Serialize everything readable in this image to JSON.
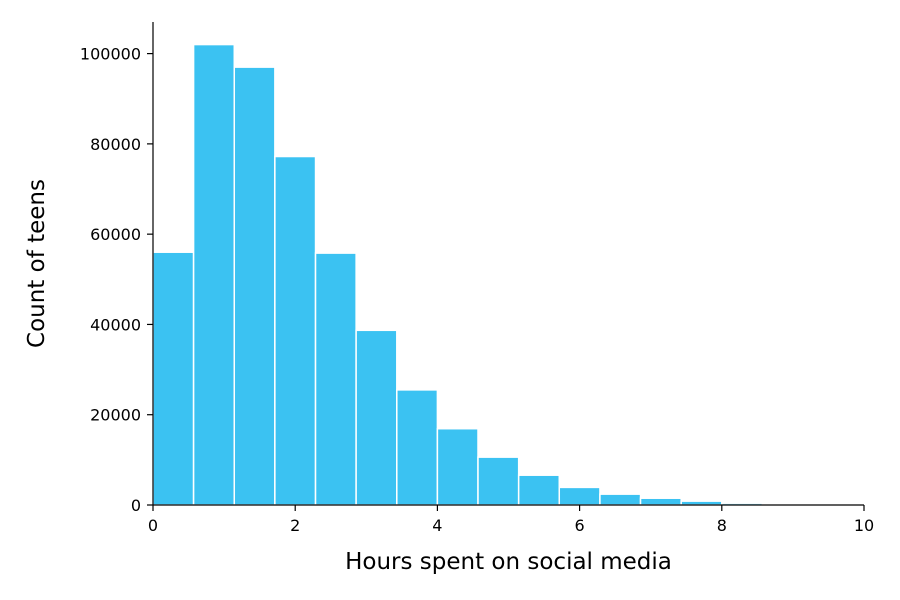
{
  "chart_data": {
    "type": "bar",
    "title": "",
    "xlabel": "Hours spent on social media",
    "ylabel": "Count of teens",
    "xlim": [
      0,
      10
    ],
    "ylim": [
      0,
      107000
    ],
    "grid": false,
    "legend": "none",
    "bar_color": "#3bc2f2",
    "x_ticks": [
      0,
      2,
      4,
      6,
      8,
      10
    ],
    "x_tick_labels": [
      "0",
      "2",
      "4",
      "6",
      "8",
      "10"
    ],
    "y_ticks": [
      0,
      20000,
      40000,
      60000,
      80000,
      100000
    ],
    "y_tick_labels": [
      "0",
      "20000",
      "40000",
      "60000",
      "80000",
      "100000"
    ],
    "bins": [
      {
        "x0": 0.0,
        "x1": 0.571,
        "value": 56000
      },
      {
        "x0": 0.571,
        "x1": 1.143,
        "value": 102000
      },
      {
        "x0": 1.143,
        "x1": 1.714,
        "value": 97000
      },
      {
        "x0": 1.714,
        "x1": 2.286,
        "value": 77200
      },
      {
        "x0": 2.286,
        "x1": 2.857,
        "value": 55800
      },
      {
        "x0": 2.857,
        "x1": 3.429,
        "value": 38700
      },
      {
        "x0": 3.429,
        "x1": 4.0,
        "value": 25500
      },
      {
        "x0": 4.0,
        "x1": 4.571,
        "value": 16900
      },
      {
        "x0": 4.571,
        "x1": 5.143,
        "value": 10600
      },
      {
        "x0": 5.143,
        "x1": 5.714,
        "value": 6600
      },
      {
        "x0": 5.714,
        "x1": 6.286,
        "value": 3900
      },
      {
        "x0": 6.286,
        "x1": 6.857,
        "value": 2400
      },
      {
        "x0": 6.857,
        "x1": 7.429,
        "value": 1500
      },
      {
        "x0": 7.429,
        "x1": 8.0,
        "value": 850
      },
      {
        "x0": 8.0,
        "x1": 8.571,
        "value": 400
      },
      {
        "x0": 8.571,
        "x1": 9.143,
        "value": 200
      },
      {
        "x0": 9.143,
        "x1": 9.714,
        "value": 100
      },
      {
        "x0": 9.714,
        "x1": 10.0,
        "value": 50
      }
    ]
  }
}
